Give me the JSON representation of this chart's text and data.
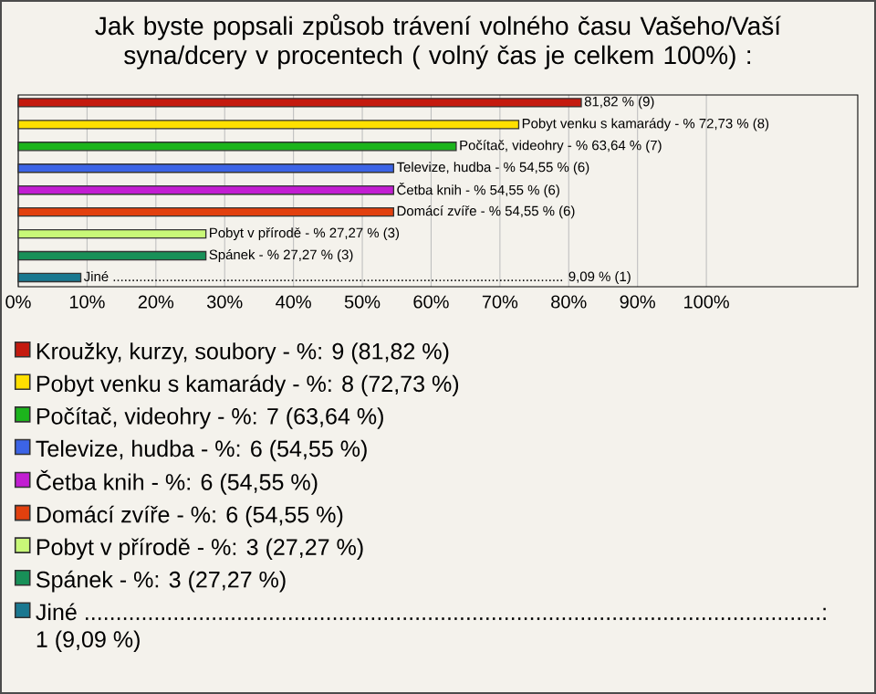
{
  "chart_data": {
    "type": "bar",
    "orientation": "horizontal",
    "title": "Jak byste popsali způsob trávení volného času Vašeho/Vaší syna/dcery v procentech ( volný čas je celkem 100%) :",
    "categories": [
      null,
      null,
      null,
      null,
      null,
      null,
      null,
      null,
      null
    ],
    "series": [
      {
        "name": "Kroužky, kurzy, soubory - %: 9 (81,82 %)",
        "color": "#c41a0e",
        "values": [
          81.82,
          null,
          null,
          null,
          null,
          null,
          null,
          null,
          null
        ],
        "value_labels": [
          "81,82 % (9)",
          null,
          null,
          null,
          null,
          null,
          null,
          null,
          null
        ]
      },
      {
        "name": "Pobyt venku s kamarády - %: 8 (72,73 %)",
        "color": "#ffe000",
        "values": [
          null,
          72.73,
          null,
          null,
          null,
          null,
          null,
          null,
          null
        ],
        "value_labels": [
          null,
          "Pobyt venku s kamarády - % 72,73 % (8)",
          null,
          null,
          null,
          null,
          null,
          null,
          null
        ]
      },
      {
        "name": "Počítač, videohry - %: 7 (63,64 %)",
        "color": "#1cb41c",
        "values": [
          null,
          null,
          63.64,
          null,
          null,
          null,
          null,
          null,
          null
        ],
        "value_labels": [
          null,
          null,
          "Počítač, videohry - % 63,64 % (7)",
          null,
          null,
          null,
          null,
          null,
          null
        ]
      },
      {
        "name": "Televize, hudba - %: 6 (54,55 %)",
        "color": "#3c64e6",
        "values": [
          null,
          null,
          null,
          54.55,
          null,
          null,
          null,
          null,
          null
        ],
        "value_labels": [
          null,
          null,
          null,
          "Televize, hudba - % 54,55 % (6)",
          null,
          null,
          null,
          null,
          null
        ]
      },
      {
        "name": "Četba knih - %: 6 (54,55 %)",
        "color": "#c21ed2",
        "values": [
          null,
          null,
          null,
          null,
          54.55,
          null,
          null,
          null,
          null
        ],
        "value_labels": [
          null,
          null,
          null,
          null,
          "Četba knih - % 54,55 % (6)",
          null,
          null,
          null,
          null
        ]
      },
      {
        "name": "Domácí zvíře - %: 6 (54,55 %)",
        "color": "#e2400e",
        "values": [
          null,
          null,
          null,
          null,
          null,
          54.55,
          null,
          null,
          null
        ],
        "value_labels": [
          null,
          null,
          null,
          null,
          null,
          "Domácí zvíře - % 54,55 % (6)",
          null,
          null,
          null
        ]
      },
      {
        "name": "Pobyt v přírodě - %: 3 (27,27 %)",
        "color": "#c8f878",
        "values": [
          null,
          null,
          null,
          null,
          null,
          null,
          27.27,
          null,
          null
        ],
        "value_labels": [
          null,
          null,
          null,
          null,
          null,
          null,
          "Pobyt v přírodě - % 27,27 % (3)",
          null,
          null
        ]
      },
      {
        "name": "Spánek - %: 3 (27,27 %)",
        "color": "#189058",
        "values": [
          null,
          null,
          null,
          null,
          null,
          null,
          null,
          27.27,
          null
        ],
        "value_labels": [
          null,
          null,
          null,
          null,
          null,
          null,
          null,
          "Spánek - % 27,27 % (3)",
          null
        ]
      },
      {
        "name": "Jiné ....................................................................................................................: 1 (9,09 %)",
        "color": "#1a7890",
        "values": [
          null,
          null,
          null,
          null,
          null,
          null,
          null,
          null,
          9.09
        ],
        "value_labels": [
          null,
          null,
          null,
          null,
          null,
          null,
          null,
          null,
          "Jiné ....................................................................................................................... 9,09 % (1)"
        ]
      }
    ],
    "xlim": [
      0,
      122
    ],
    "xticks": [
      {
        "value": 0,
        "label": "0%"
      },
      {
        "value": 10,
        "label": "10%"
      },
      {
        "value": 20,
        "label": "20%"
      },
      {
        "value": 30,
        "label": "30%"
      },
      {
        "value": 40,
        "label": "40%"
      },
      {
        "value": 50,
        "label": "50%"
      },
      {
        "value": 60,
        "label": "60%"
      },
      {
        "value": 70,
        "label": "70%"
      },
      {
        "value": 80,
        "label": "80%"
      },
      {
        "value": 90,
        "label": "90%"
      },
      {
        "value": 100,
        "label": "100%"
      }
    ],
    "grid": "x",
    "legend": "bottom"
  }
}
